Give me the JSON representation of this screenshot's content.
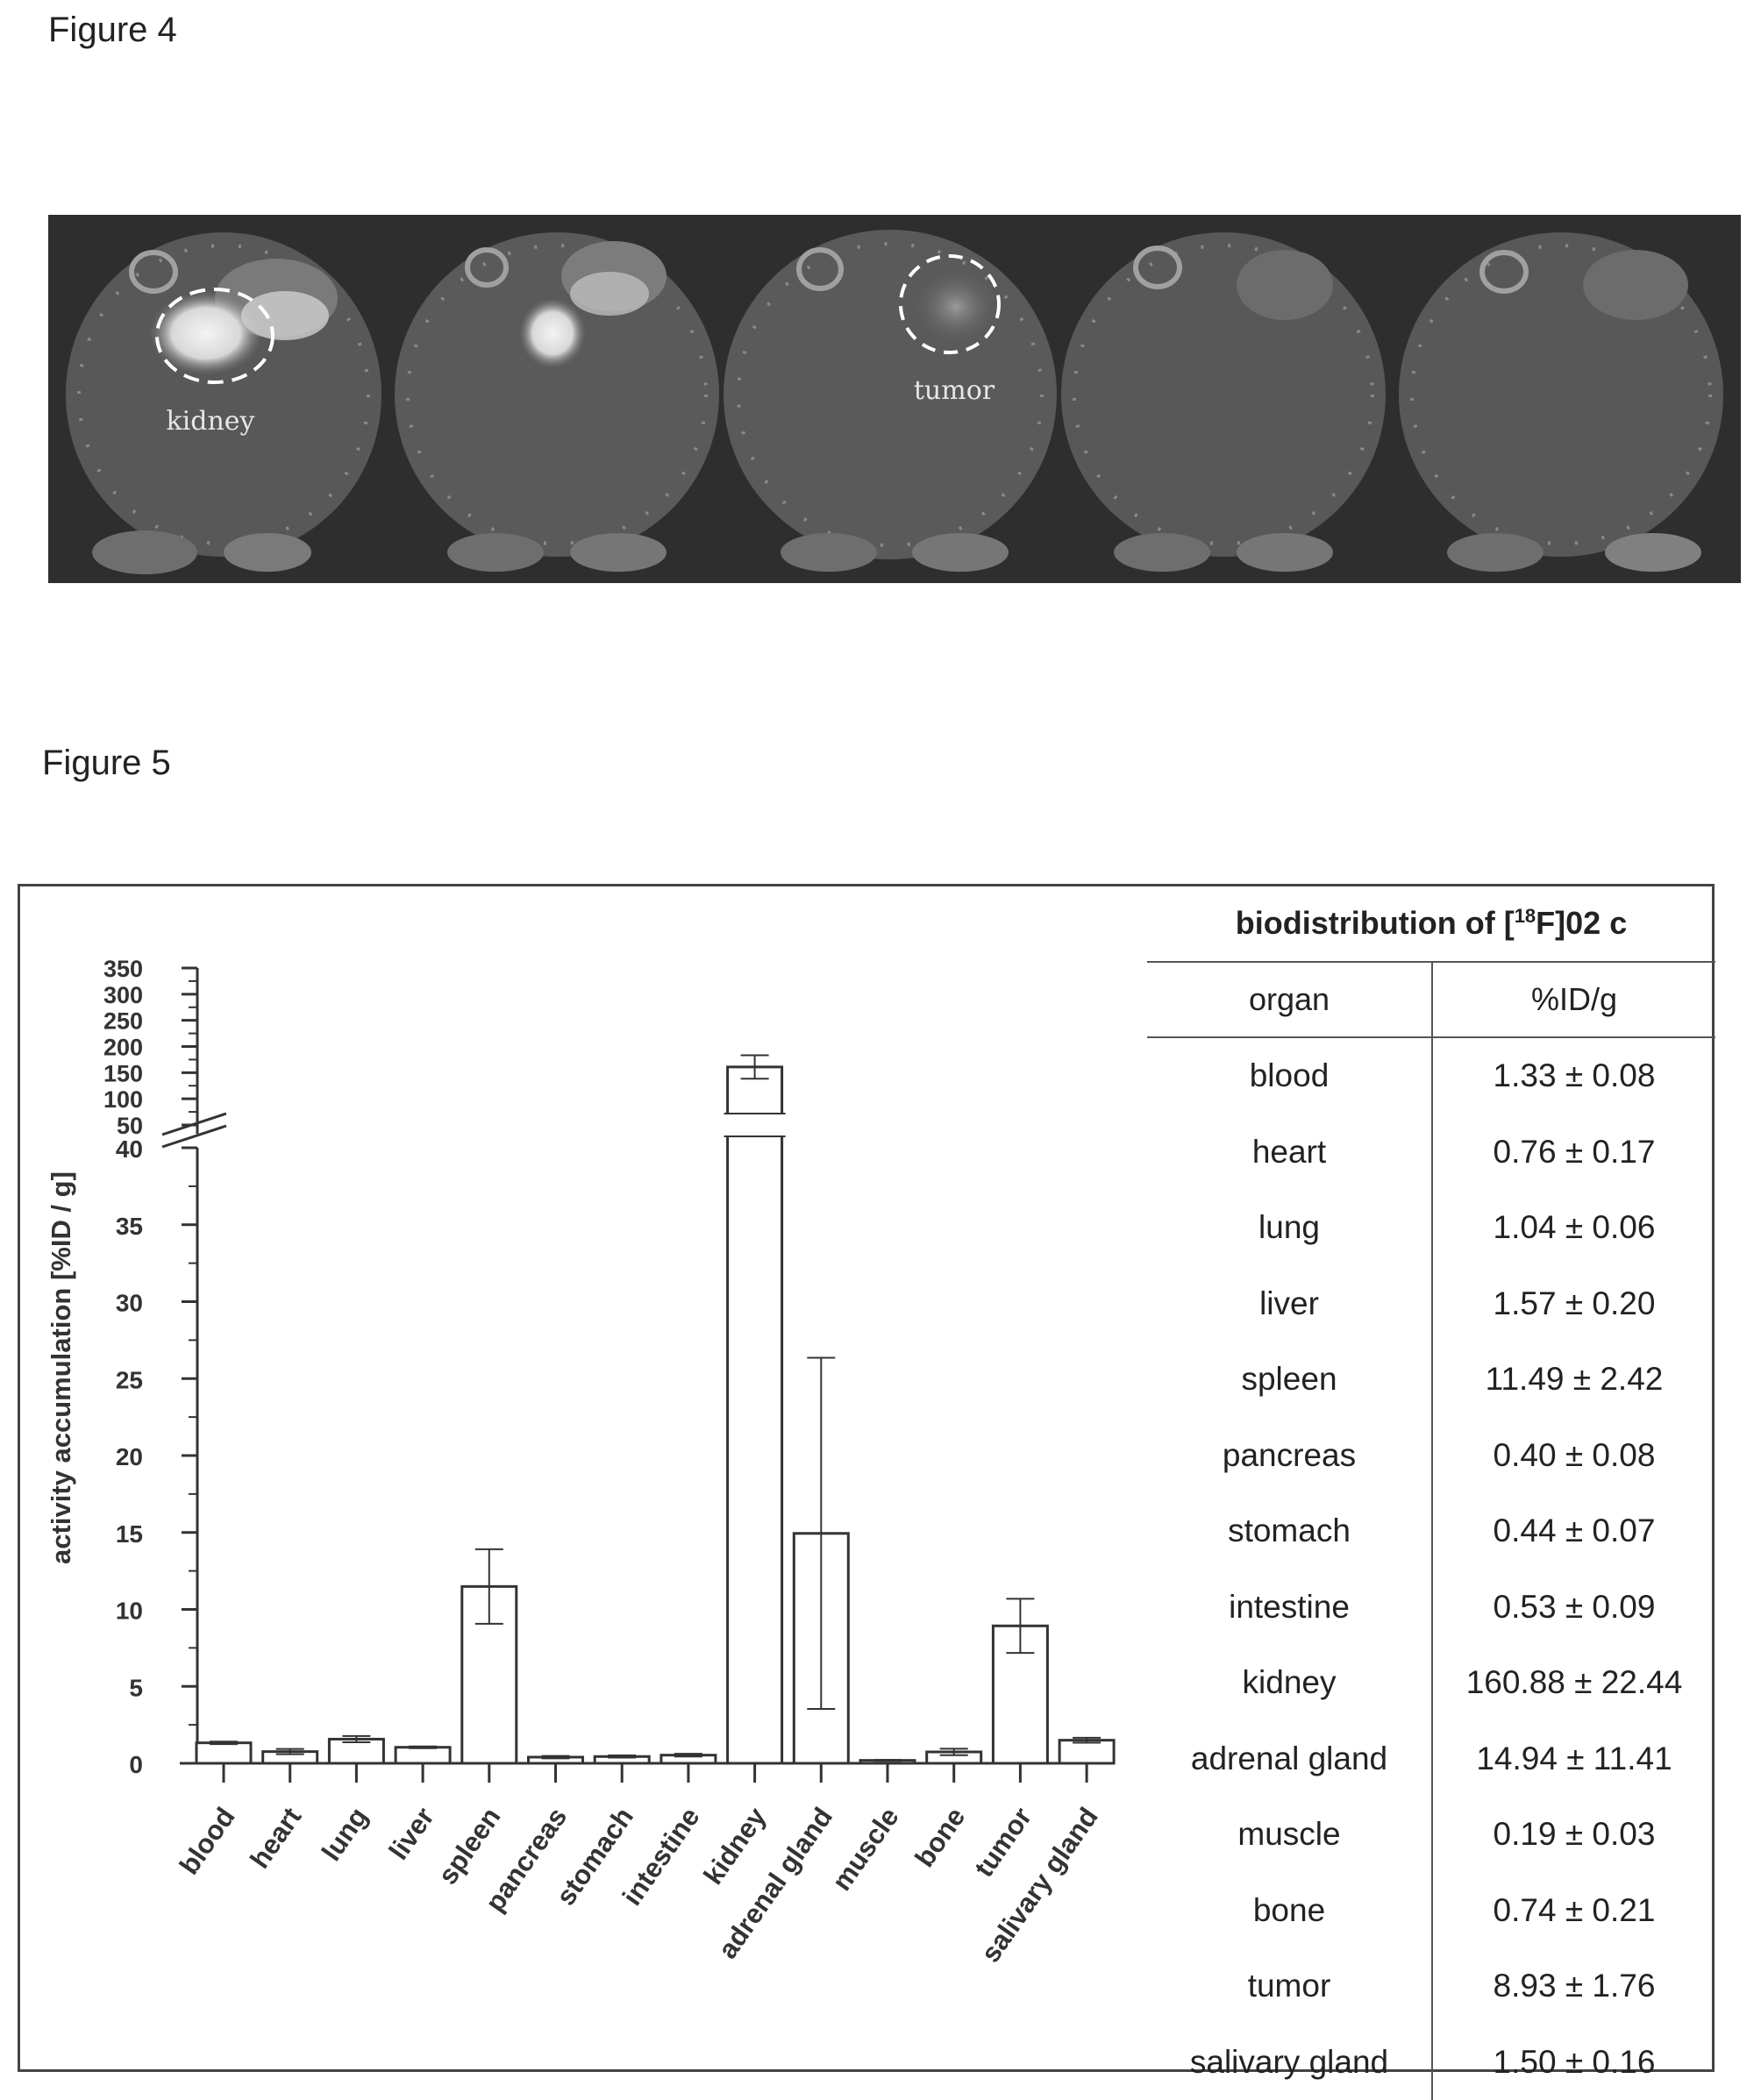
{
  "figure4": {
    "label": "Figure 4",
    "annotations": {
      "kidney": "kidney",
      "tumor": "tumor"
    }
  },
  "figure5": {
    "label": "Figure 5",
    "table": {
      "title_prefix": "biodistribution of [",
      "title_sup": "18",
      "title_suffix": "F]02 c",
      "col_organ": "organ",
      "col_value": "%ID/g",
      "rows": [
        {
          "organ": "blood",
          "value": "1.33 ± 0.08"
        },
        {
          "organ": "heart",
          "value": "0.76 ± 0.17"
        },
        {
          "organ": "lung",
          "value": "1.04 ± 0.06"
        },
        {
          "organ": "liver",
          "value": "1.57 ± 0.20"
        },
        {
          "organ": "spleen",
          "value": "11.49 ± 2.42"
        },
        {
          "organ": "pancreas",
          "value": "0.40 ± 0.08"
        },
        {
          "organ": "stomach",
          "value": "0.44 ± 0.07"
        },
        {
          "organ": "intestine",
          "value": "0.53 ± 0.09"
        },
        {
          "organ": "kidney",
          "value": "160.88 ± 22.44"
        },
        {
          "organ": "adrenal gland",
          "value": "14.94 ± 11.41"
        },
        {
          "organ": "muscle",
          "value": "0.19 ± 0.03"
        },
        {
          "organ": "bone",
          "value": "0.74 ± 0.21"
        },
        {
          "organ": "tumor",
          "value": "8.93 ± 1.76"
        },
        {
          "organ": "salivary gland",
          "value": "1.50 ± 0.16"
        }
      ]
    }
  },
  "chart_data": {
    "type": "bar",
    "title": "",
    "xlabel": "",
    "ylabel": "activity accumulation [%ID / g]",
    "axis_break": true,
    "lower_ylim": [
      0,
      40
    ],
    "lower_ticks": [
      0,
      5,
      10,
      15,
      20,
      25,
      30,
      35,
      40
    ],
    "upper_ylim": [
      50,
      350
    ],
    "upper_ticks": [
      50,
      100,
      150,
      200,
      250,
      300,
      350
    ],
    "categories": [
      "blood",
      "heart",
      "lung",
      "liver",
      "spleen",
      "pancreas",
      "stomach",
      "intestine",
      "kidney",
      "adrenal gland",
      "muscle",
      "bone",
      "tumor",
      "salivary gland"
    ],
    "values": [
      1.33,
      0.76,
      1.57,
      1.04,
      11.49,
      0.4,
      0.44,
      0.53,
      160.88,
      14.94,
      0.19,
      0.74,
      8.93,
      1.5
    ],
    "errors": [
      0.08,
      0.17,
      0.2,
      0.06,
      2.42,
      0.08,
      0.07,
      0.09,
      22.44,
      11.41,
      0.03,
      0.21,
      1.76,
      0.16
    ],
    "grid": false
  }
}
